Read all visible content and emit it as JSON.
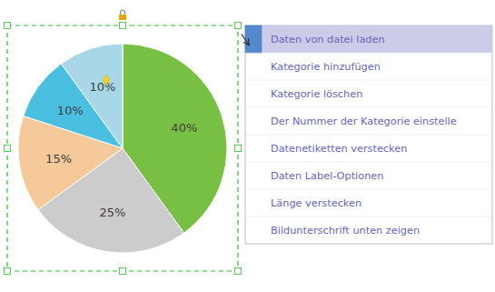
{
  "chart_data": {
    "type": "pie",
    "values": [
      40,
      25,
      15,
      10,
      10
    ],
    "value_labels": [
      "40%",
      "25%",
      "15%",
      "10%",
      "10%"
    ],
    "colors": [
      "#77C043",
      "#CCCCCC",
      "#F5C99A",
      "#4BBFE0",
      "#A8D8E8"
    ],
    "data_labels": true,
    "annotations": [
      "Daten von datei laden",
      "Kategorie hinzufügen",
      "Kategorie löschen",
      "Der Nummer der Kategorie einstelle",
      "Datenetiketten verstecken",
      "Daten Label-Optionen",
      "Länge verstecken",
      "Bildunterschrift unten zeigen"
    ]
  }
}
